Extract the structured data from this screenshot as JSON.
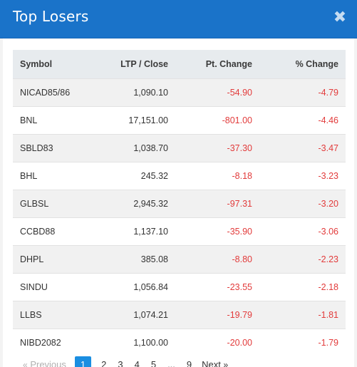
{
  "modal": {
    "title": "Top Losers",
    "close_glyph": "✖",
    "close_icon": "close-icon"
  },
  "table": {
    "headers": {
      "symbol": "Symbol",
      "ltp": "LTP / Close",
      "pt_change": "Pt. Change",
      "pct_change": "% Change"
    },
    "rows": [
      {
        "symbol": "NICAD85/86",
        "ltp": "1,090.10",
        "pt_change": "-54.90",
        "pct_change": "-4.79"
      },
      {
        "symbol": "BNL",
        "ltp": "17,151.00",
        "pt_change": "-801.00",
        "pct_change": "-4.46"
      },
      {
        "symbol": "SBLD83",
        "ltp": "1,038.70",
        "pt_change": "-37.30",
        "pct_change": "-3.47"
      },
      {
        "symbol": "BHL",
        "ltp": "245.32",
        "pt_change": "-8.18",
        "pct_change": "-3.23"
      },
      {
        "symbol": "GLBSL",
        "ltp": "2,945.32",
        "pt_change": "-97.31",
        "pct_change": "-3.20"
      },
      {
        "symbol": "CCBD88",
        "ltp": "1,137.10",
        "pt_change": "-35.90",
        "pct_change": "-3.06"
      },
      {
        "symbol": "DHPL",
        "ltp": "385.08",
        "pt_change": "-8.80",
        "pct_change": "-2.23"
      },
      {
        "symbol": "SINDU",
        "ltp": "1,056.84",
        "pt_change": "-23.55",
        "pct_change": "-2.18"
      },
      {
        "symbol": "LLBS",
        "ltp": "1,074.21",
        "pt_change": "-19.79",
        "pct_change": "-1.81"
      },
      {
        "symbol": "NIBD2082",
        "ltp": "1,100.00",
        "pt_change": "-20.00",
        "pct_change": "-1.79"
      }
    ]
  },
  "pagination": {
    "prev_arrow": "«",
    "previous": "Previous",
    "pages": [
      "1",
      "2",
      "3",
      "4",
      "5"
    ],
    "ellipsis": "...",
    "last_page": "9",
    "next": "Next",
    "next_arrow": "»",
    "current_page": "1"
  },
  "colors": {
    "header_bg": "#1a73c9",
    "negative": "#e23b3b",
    "active_page": "#1a8ee1"
  }
}
